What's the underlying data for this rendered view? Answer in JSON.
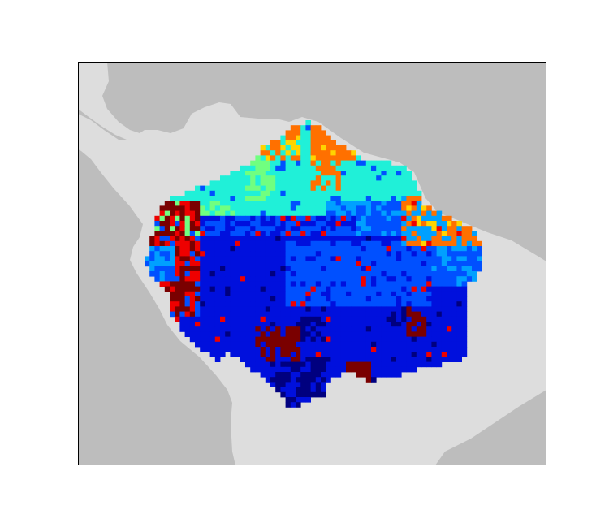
{
  "figure": {
    "type": "raster-map",
    "description_visible_text": "",
    "colors": {
      "ocean": "#bdbdbd",
      "land": "#dddddd",
      "frame": "#000000",
      "background": "#ffffff"
    },
    "classes": [
      {
        "id": "navy",
        "color": "#00007f"
      },
      {
        "id": "blue",
        "color": "#0010dd"
      },
      {
        "id": "medium-blue",
        "color": "#0050ff"
      },
      {
        "id": "azure",
        "color": "#00a0ff"
      },
      {
        "id": "cyan",
        "color": "#20f0d8"
      },
      {
        "id": "green",
        "color": "#70ff80"
      },
      {
        "id": "yellow",
        "color": "#ffd400"
      },
      {
        "id": "orange",
        "color": "#ff7000"
      },
      {
        "id": "red",
        "color": "#ee0000"
      },
      {
        "id": "maroon",
        "color": "#7a0000"
      }
    ]
  }
}
